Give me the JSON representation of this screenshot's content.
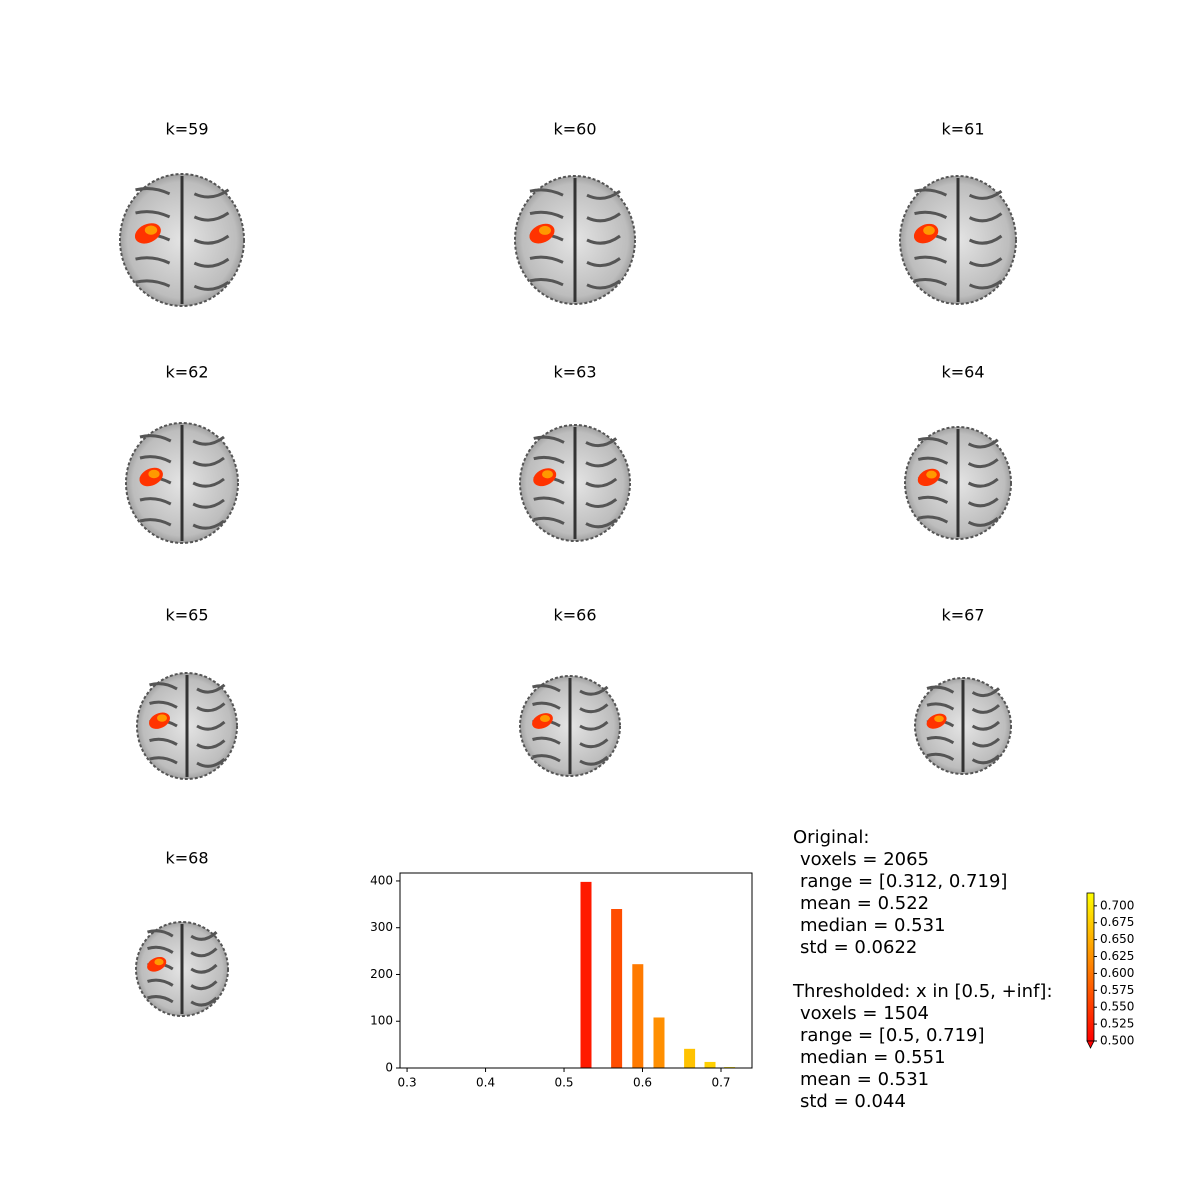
{
  "slices": [
    {
      "title": "k=59"
    },
    {
      "title": "k=60"
    },
    {
      "title": "k=61"
    },
    {
      "title": "k=62"
    },
    {
      "title": "k=63"
    },
    {
      "title": "k=64"
    },
    {
      "title": "k=65"
    },
    {
      "title": "k=66"
    },
    {
      "title": "k=67"
    },
    {
      "title": "k=68"
    }
  ],
  "chart_data": {
    "type": "bar",
    "x": [
      0.528,
      0.567,
      0.594,
      0.621,
      0.66,
      0.686,
      0.711
    ],
    "values": [
      398,
      340,
      222,
      108,
      41,
      13,
      2
    ],
    "colors": [
      "#ff1a00",
      "#ff4d00",
      "#ff7a00",
      "#ff8f00",
      "#ffc200",
      "#ffd000",
      "#ffe600"
    ],
    "xlim": [
      0.291,
      0.7395
    ],
    "xticks": [
      0.3,
      0.4,
      0.5,
      0.6,
      0.7
    ],
    "ylim": [
      0,
      417
    ],
    "yticks": [
      0,
      100,
      200,
      300,
      400
    ]
  },
  "stats": {
    "original": {
      "heading": "Original:",
      "lines": [
        "voxels = 2065",
        "range = [0.312, 0.719]",
        "mean = 0.522",
        "median = 0.531",
        "std = 0.0622"
      ]
    },
    "thresholded": {
      "heading": "Thresholded: x in [0.5, +inf]:",
      "lines": [
        "voxels = 1504",
        "range = [0.5, 0.719]",
        "median = 0.551",
        "mean = 0.531",
        "std = 0.044"
      ]
    }
  },
  "colorbar": {
    "lim": [
      0.5,
      0.719
    ],
    "colors": [
      "#ff0000",
      "#ffff00"
    ],
    "ticks": [
      {
        "value": 0.5,
        "label": "0.500"
      },
      {
        "value": 0.525,
        "label": "0.525"
      },
      {
        "value": 0.55,
        "label": "0.550"
      },
      {
        "value": 0.575,
        "label": "0.575"
      },
      {
        "value": 0.6,
        "label": "0.600"
      },
      {
        "value": 0.625,
        "label": "0.625"
      },
      {
        "value": 0.65,
        "label": "0.650"
      },
      {
        "value": 0.675,
        "label": "0.675"
      },
      {
        "value": 0.7,
        "label": "0.700"
      }
    ]
  }
}
